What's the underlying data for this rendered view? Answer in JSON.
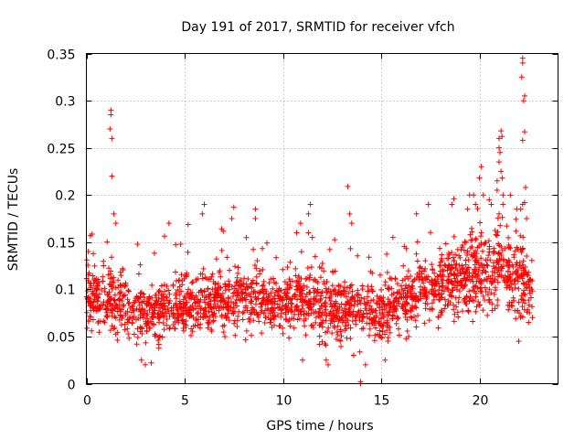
{
  "chart_data": {
    "type": "scatter",
    "title": "Day 191 of 2017, SRMTID for receiver vfch",
    "xlabel": "GPS time / hours",
    "ylabel": "SRMTID / TECUs",
    "xlim": [
      0,
      24
    ],
    "ylim": [
      0,
      0.35
    ],
    "xticks": [
      0,
      5,
      10,
      15,
      20
    ],
    "yticks": [
      0,
      0.05,
      0.1,
      0.15,
      0.2,
      0.25,
      0.3,
      0.35
    ],
    "xtick_labels": [
      "0",
      "5",
      "10",
      "15",
      "20"
    ],
    "ytick_labels": [
      "0",
      "0.05",
      "0.1",
      "0.15",
      "0.2",
      "0.25",
      "0.3",
      "0.35"
    ],
    "grid": true,
    "marker": "+",
    "color": "#ff0000",
    "trend": [
      {
        "x": 0.0,
        "y": 0.095,
        "spread": 0.035
      },
      {
        "x": 1.0,
        "y": 0.09,
        "spread": 0.035
      },
      {
        "x": 2.0,
        "y": 0.08,
        "spread": 0.03
      },
      {
        "x": 3.0,
        "y": 0.072,
        "spread": 0.03
      },
      {
        "x": 4.0,
        "y": 0.08,
        "spread": 0.032
      },
      {
        "x": 5.0,
        "y": 0.085,
        "spread": 0.03
      },
      {
        "x": 6.0,
        "y": 0.088,
        "spread": 0.03
      },
      {
        "x": 7.0,
        "y": 0.092,
        "spread": 0.03
      },
      {
        "x": 8.0,
        "y": 0.09,
        "spread": 0.03
      },
      {
        "x": 9.0,
        "y": 0.088,
        "spread": 0.03
      },
      {
        "x": 10.0,
        "y": 0.085,
        "spread": 0.03
      },
      {
        "x": 11.0,
        "y": 0.09,
        "spread": 0.03
      },
      {
        "x": 12.0,
        "y": 0.08,
        "spread": 0.035
      },
      {
        "x": 13.0,
        "y": 0.082,
        "spread": 0.035
      },
      {
        "x": 14.0,
        "y": 0.08,
        "spread": 0.03
      },
      {
        "x": 15.0,
        "y": 0.075,
        "spread": 0.028
      },
      {
        "x": 16.0,
        "y": 0.085,
        "spread": 0.03
      },
      {
        "x": 17.0,
        "y": 0.1,
        "spread": 0.035
      },
      {
        "x": 18.0,
        "y": 0.105,
        "spread": 0.035
      },
      {
        "x": 19.0,
        "y": 0.11,
        "spread": 0.035
      },
      {
        "x": 20.0,
        "y": 0.12,
        "spread": 0.04
      },
      {
        "x": 21.0,
        "y": 0.125,
        "spread": 0.045
      },
      {
        "x": 22.0,
        "y": 0.11,
        "spread": 0.045
      },
      {
        "x": 22.7,
        "y": 0.1,
        "spread": 0.035
      }
    ],
    "outliers": [
      {
        "x": 1.25,
        "y": 0.29
      },
      {
        "x": 1.25,
        "y": 0.285
      },
      {
        "x": 1.2,
        "y": 0.27
      },
      {
        "x": 1.3,
        "y": 0.26
      },
      {
        "x": 1.3,
        "y": 0.22
      },
      {
        "x": 1.4,
        "y": 0.18
      },
      {
        "x": 1.5,
        "y": 0.17
      },
      {
        "x": 0.2,
        "y": 0.157
      },
      {
        "x": 0.1,
        "y": 0.14
      },
      {
        "x": 3.0,
        "y": 0.02
      },
      {
        "x": 3.3,
        "y": 0.022
      },
      {
        "x": 2.8,
        "y": 0.025
      },
      {
        "x": 4.2,
        "y": 0.17
      },
      {
        "x": 5.9,
        "y": 0.18
      },
      {
        "x": 6.0,
        "y": 0.19
      },
      {
        "x": 7.5,
        "y": 0.187
      },
      {
        "x": 7.4,
        "y": 0.175
      },
      {
        "x": 8.6,
        "y": 0.185
      },
      {
        "x": 8.6,
        "y": 0.175
      },
      {
        "x": 11.4,
        "y": 0.19
      },
      {
        "x": 11.3,
        "y": 0.18
      },
      {
        "x": 11.3,
        "y": 0.16
      },
      {
        "x": 11.5,
        "y": 0.155
      },
      {
        "x": 10.9,
        "y": 0.17
      },
      {
        "x": 10.7,
        "y": 0.16
      },
      {
        "x": 11.0,
        "y": 0.025
      },
      {
        "x": 12.2,
        "y": 0.025
      },
      {
        "x": 12.3,
        "y": 0.02
      },
      {
        "x": 13.3,
        "y": 0.209
      },
      {
        "x": 13.4,
        "y": 0.18
      },
      {
        "x": 13.5,
        "y": 0.17
      },
      {
        "x": 13.6,
        "y": 0.03
      },
      {
        "x": 14.2,
        "y": 0.02
      },
      {
        "x": 15.2,
        "y": 0.025
      },
      {
        "x": 15.6,
        "y": 0.155
      },
      {
        "x": 16.8,
        "y": 0.18
      },
      {
        "x": 17.4,
        "y": 0.19
      },
      {
        "x": 18.6,
        "y": 0.19
      },
      {
        "x": 18.7,
        "y": 0.196
      },
      {
        "x": 19.5,
        "y": 0.2
      },
      {
        "x": 19.7,
        "y": 0.2
      },
      {
        "x": 19.4,
        "y": 0.185
      },
      {
        "x": 19.8,
        "y": 0.19
      },
      {
        "x": 20.0,
        "y": 0.218
      },
      {
        "x": 20.1,
        "y": 0.23
      },
      {
        "x": 20.2,
        "y": 0.2
      },
      {
        "x": 20.5,
        "y": 0.195
      },
      {
        "x": 20.6,
        "y": 0.19
      },
      {
        "x": 21.0,
        "y": 0.26
      },
      {
        "x": 21.0,
        "y": 0.25
      },
      {
        "x": 21.05,
        "y": 0.245
      },
      {
        "x": 21.1,
        "y": 0.268
      },
      {
        "x": 21.15,
        "y": 0.262
      },
      {
        "x": 21.0,
        "y": 0.235
      },
      {
        "x": 21.1,
        "y": 0.225
      },
      {
        "x": 20.9,
        "y": 0.215
      },
      {
        "x": 20.9,
        "y": 0.205
      },
      {
        "x": 21.2,
        "y": 0.2
      },
      {
        "x": 21.2,
        "y": 0.19
      },
      {
        "x": 21.0,
        "y": 0.18
      },
      {
        "x": 22.2,
        "y": 0.345
      },
      {
        "x": 22.2,
        "y": 0.34
      },
      {
        "x": 22.15,
        "y": 0.325
      },
      {
        "x": 22.3,
        "y": 0.305
      },
      {
        "x": 22.25,
        "y": 0.3
      },
      {
        "x": 22.3,
        "y": 0.267
      },
      {
        "x": 22.2,
        "y": 0.258
      },
      {
        "x": 22.35,
        "y": 0.208
      },
      {
        "x": 22.3,
        "y": 0.192
      },
      {
        "x": 22.2,
        "y": 0.19
      },
      {
        "x": 22.1,
        "y": 0.185
      },
      {
        "x": 21.9,
        "y": 0.185
      },
      {
        "x": 22.4,
        "y": 0.175
      },
      {
        "x": 22.0,
        "y": 0.045
      },
      {
        "x": 22.5,
        "y": 0.065
      },
      {
        "x": 22.7,
        "y": 0.07
      },
      {
        "x": 13.95,
        "y": 0.0
      },
      {
        "x": 13.95,
        "y": 0.002
      }
    ]
  }
}
